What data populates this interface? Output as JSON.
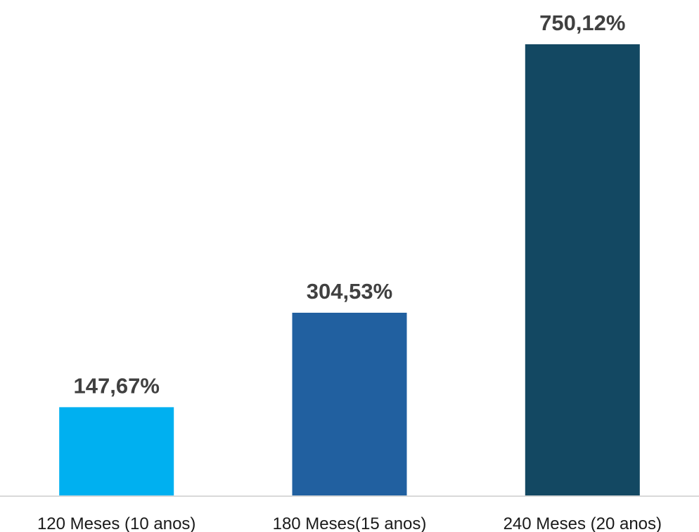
{
  "chart_data": {
    "type": "bar",
    "title": "",
    "xlabel": "",
    "ylabel": "",
    "categories": [
      "120 Meses (10 anos)",
      "180 Meses(15 anos)",
      "240 Meses (20 anos)"
    ],
    "values": [
      147.67,
      304.53,
      750.12
    ],
    "data_labels": [
      "147,67%",
      "304,53%",
      "750,12%"
    ],
    "bar_colors": [
      "#00b0f0",
      "#2160a0",
      "#134862"
    ],
    "ylim": [
      0,
      750.12
    ],
    "grid": false,
    "legend": "none",
    "axis_color": "#d9d9d9"
  }
}
